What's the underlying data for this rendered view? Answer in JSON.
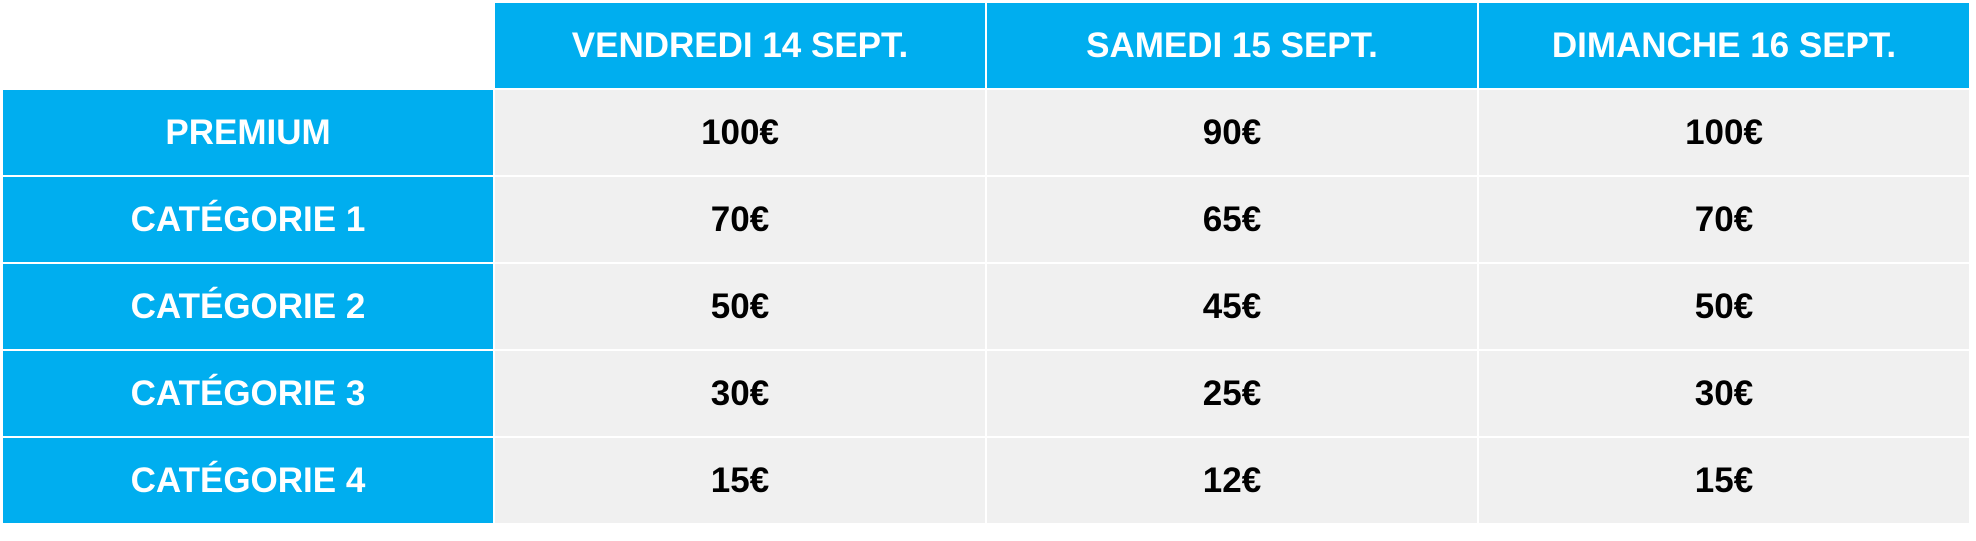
{
  "table": {
    "columns": [
      "VENDREDI 14 SEPT.",
      "SAMEDI 15 SEPT.",
      "DIMANCHE 16 SEPT."
    ],
    "rows": [
      {
        "label": "PREMIUM",
        "cells": [
          "100€",
          "90€",
          "100€"
        ]
      },
      {
        "label": "CATÉGORIE 1",
        "cells": [
          "70€",
          "65€",
          "70€"
        ]
      },
      {
        "label": "CATÉGORIE 2",
        "cells": [
          "50€",
          "45€",
          "50€"
        ]
      },
      {
        "label": "CATÉGORIE 3",
        "cells": [
          "30€",
          "25€",
          "30€"
        ]
      },
      {
        "label": "CATÉGORIE 4",
        "cells": [
          "15€",
          "12€",
          "15€"
        ]
      }
    ]
  }
}
